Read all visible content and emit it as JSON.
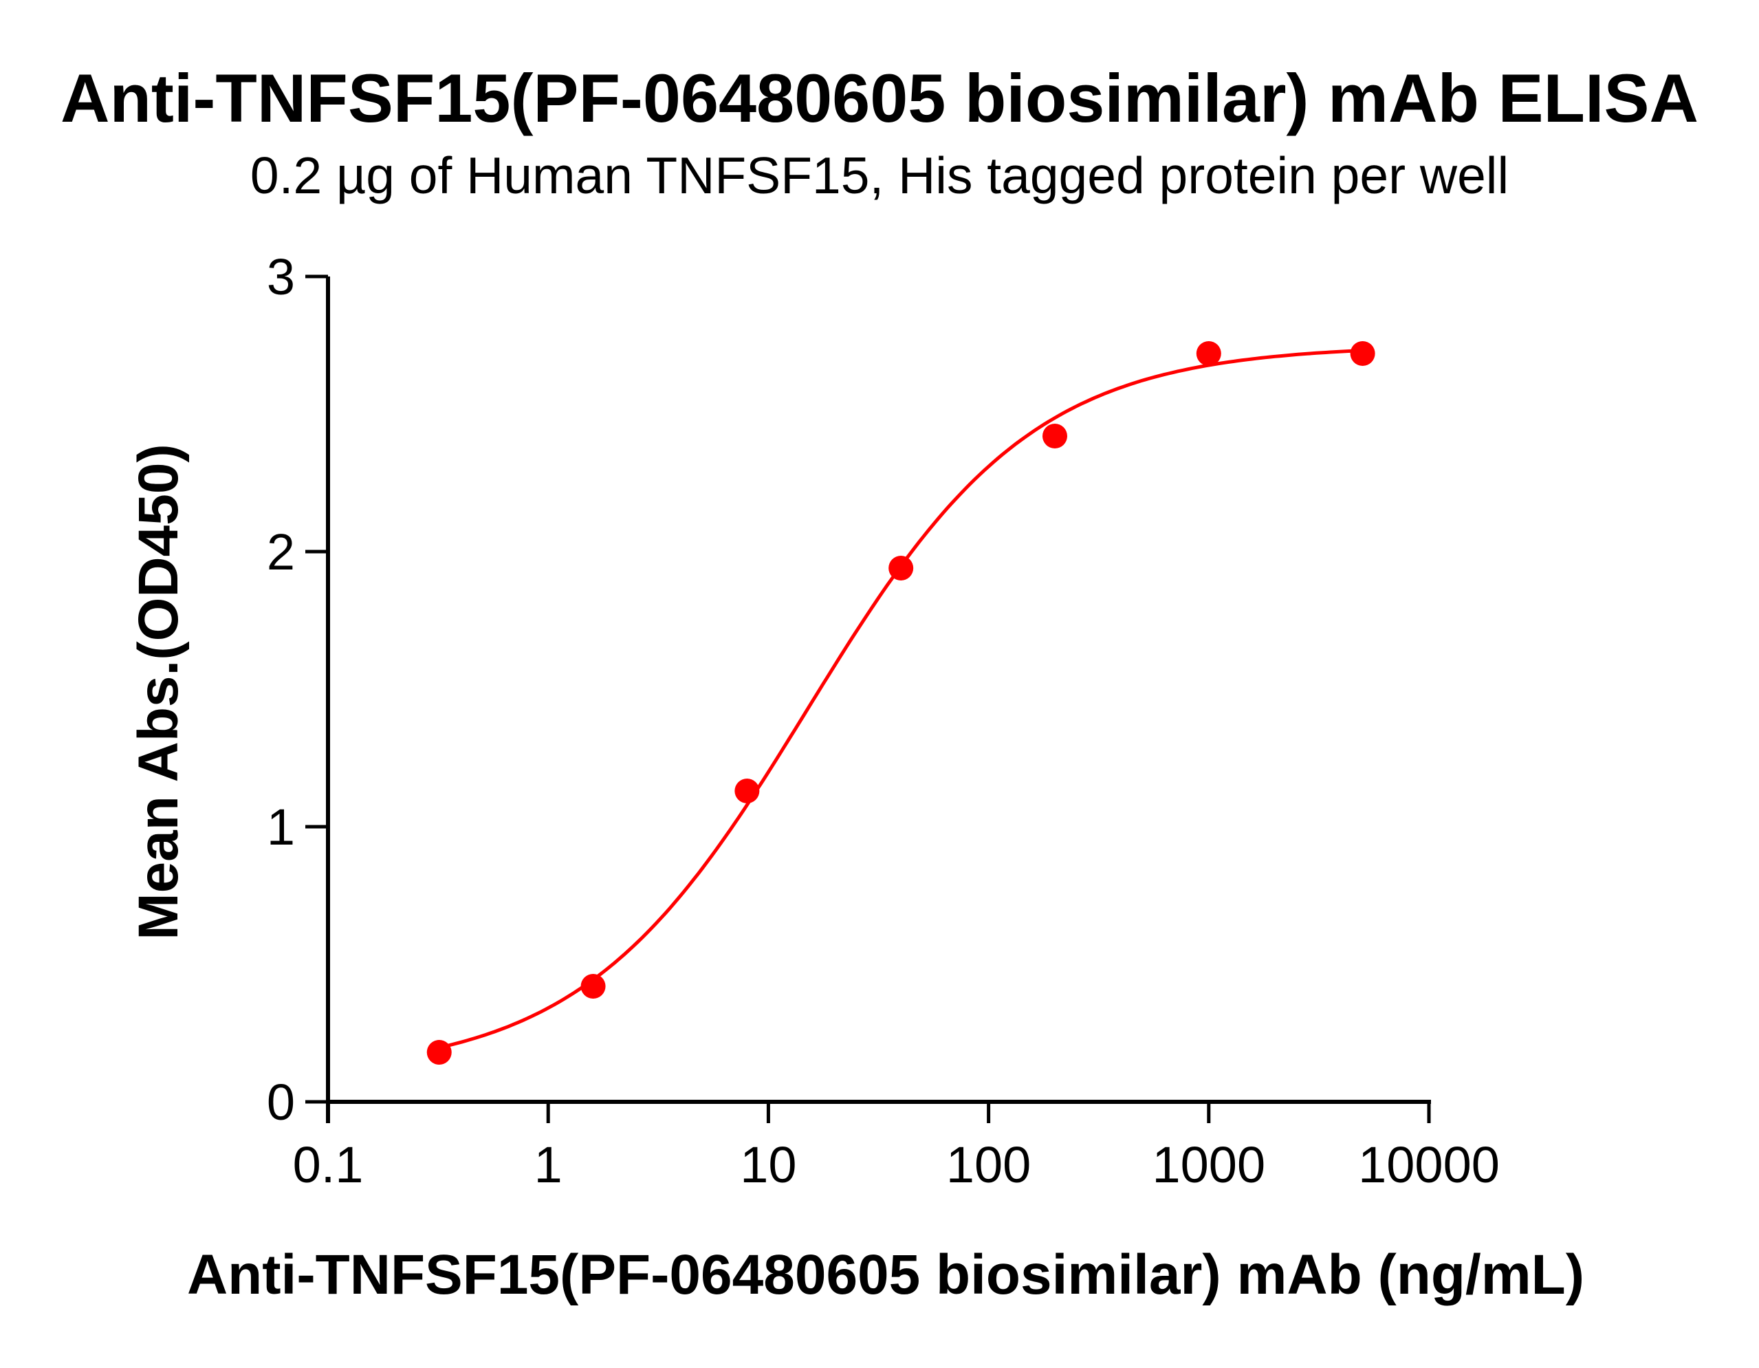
{
  "title": "Anti-TNFSF15(PF-06480605 biosimilar) mAb ELISA",
  "subtitle": "0.2 µg of Human TNFSF15, His tagged protein per well",
  "colors": {
    "series": "#FF0000",
    "axis": "#000000",
    "background": "#FFFFFF"
  },
  "chart_data": {
    "type": "scatter",
    "title": "Anti-TNFSF15(PF-06480605 biosimilar) mAb ELISA",
    "subtitle": "0.2 µg of Human TNFSF15, His tagged protein per well",
    "xlabel": "Anti-TNFSF15(PF-06480605 biosimilar) mAb (ng/mL)",
    "ylabel": "Mean Abs.(OD450)",
    "xscale": "log",
    "xlim": [
      0.1,
      10000
    ],
    "ylim": [
      0,
      3
    ],
    "x_ticks": [
      "0.1",
      "1",
      "10",
      "100",
      "1000",
      "10000"
    ],
    "y_ticks": [
      "0",
      "1",
      "2",
      "3"
    ],
    "grid": false,
    "legend": null,
    "series": [
      {
        "name": "Anti-TNFSF15(PF-06480605 biosimilar) mAb",
        "x": [
          0.32,
          1.6,
          8,
          40,
          200,
          1000,
          5000
        ],
        "y": [
          0.18,
          0.42,
          1.13,
          1.94,
          2.42,
          2.72,
          2.72
        ],
        "marker": "circle",
        "color": "#FF0000",
        "fit": {
          "model": "4PL",
          "bottom": 0.1,
          "top": 2.75,
          "ec50": 15,
          "hill": 0.85
        }
      }
    ]
  }
}
